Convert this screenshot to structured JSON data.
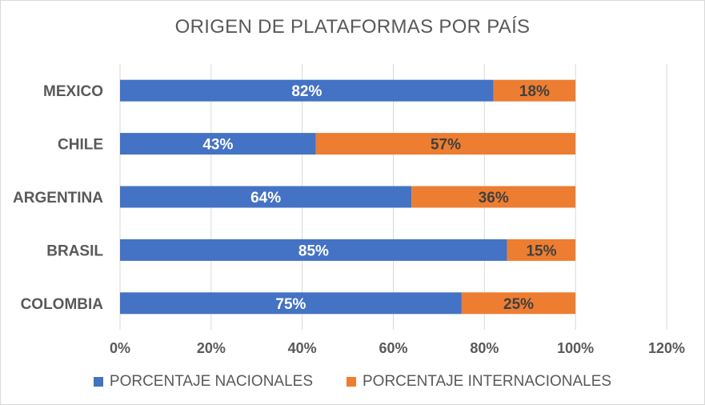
{
  "chart_data": {
    "type": "bar",
    "orientation": "horizontal",
    "stacked": true,
    "title": "ORIGEN DE PLATAFORMAS POR PAÍS",
    "categories": [
      "MEXICO",
      "CHILE",
      "ARGENTINA",
      "BRASIL",
      "COLOMBIA"
    ],
    "series": [
      {
        "name": "PORCENTAJE NACIONALES",
        "color": "#4472C4",
        "label_color": "#ffffff",
        "values": [
          82,
          43,
          64,
          85,
          75
        ],
        "labels": [
          "82%",
          "43%",
          "64%",
          "85%",
          "75%"
        ]
      },
      {
        "name": "PORCENTAJE INTERNACIONALES",
        "color": "#ED7D31",
        "label_color": "#404040",
        "values": [
          18,
          57,
          36,
          15,
          25
        ],
        "labels": [
          "18%",
          "57%",
          "36%",
          "15%",
          "25%"
        ]
      }
    ],
    "xlim": [
      0,
      120
    ],
    "xticks": [
      0,
      20,
      40,
      60,
      80,
      100,
      120
    ],
    "xtick_labels": [
      "0%",
      "20%",
      "40%",
      "60%",
      "80%",
      "100%",
      "120%"
    ],
    "grid": true,
    "gridline_color": "#d9d9d9",
    "legend_position": "bottom"
  }
}
